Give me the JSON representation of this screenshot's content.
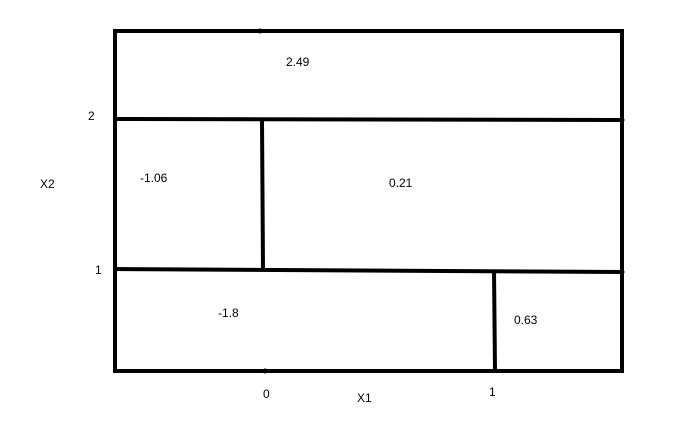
{
  "diagram": {
    "stroke_color": "#000000",
    "background_color": "#ffffff",
    "axes": {
      "x_label": "X1",
      "y_label": "X2",
      "x_ticks": [
        "0",
        "1"
      ],
      "y_ticks": [
        "2",
        "1"
      ]
    },
    "regions": [
      {
        "id": "top",
        "value": "2.49"
      },
      {
        "id": "middle-left",
        "value": "-1.06"
      },
      {
        "id": "middle-right",
        "value": "0.21"
      },
      {
        "id": "bottom-left",
        "value": "-1.8"
      },
      {
        "id": "bottom-right",
        "value": "0.63"
      }
    ]
  }
}
